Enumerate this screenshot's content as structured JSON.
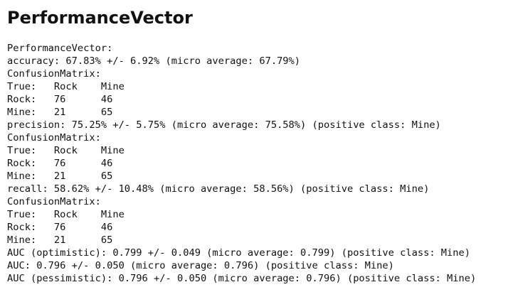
{
  "header": {
    "title": "PerformanceVector"
  },
  "lines": [
    "PerformanceVector:",
    "accuracy: 67.83% +/- 6.92% (micro average: 67.79%)",
    "ConfusionMatrix:",
    "True:   Rock    Mine",
    "Rock:   76      46",
    "Mine:   21      65",
    "precision: 75.25% +/- 5.75% (micro average: 75.58%) (positive class: Mine)",
    "ConfusionMatrix:",
    "True:   Rock    Mine",
    "Rock:   76      46",
    "Mine:   21      65",
    "recall: 58.62% +/- 10.48% (micro average: 58.56%) (positive class: Mine)",
    "ConfusionMatrix:",
    "True:   Rock    Mine",
    "Rock:   76      46",
    "Mine:   21      65",
    "AUC (optimistic): 0.799 +/- 0.049 (micro average: 0.799) (positive class: Mine)",
    "AUC: 0.796 +/- 0.050 (micro average: 0.796) (positive class: Mine)",
    "AUC (pessimistic): 0.796 +/- 0.050 (micro average: 0.796) (positive class: Mine)"
  ]
}
